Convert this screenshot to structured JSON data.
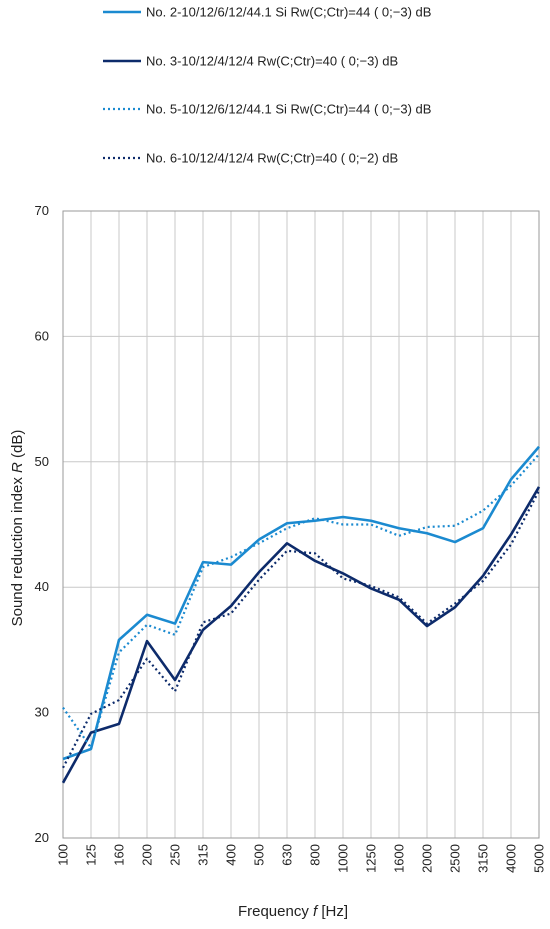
{
  "chart_data": {
    "type": "line",
    "xlabel": "Frequency f [Hz]",
    "xlabel_parts": {
      "before": "Frequency ",
      "italic": "f",
      "after": " [Hz]"
    },
    "ylabel": "Sound reduction index R (dB)",
    "ylabel_parts": {
      "before": "Sound reduction index  ",
      "italic": "R",
      "after": "  (dB)"
    },
    "ylim": [
      20,
      70
    ],
    "yticks": [
      "20",
      "30",
      "40",
      "50",
      "60",
      "70"
    ],
    "categories": [
      "100",
      "125",
      "160",
      "200",
      "250",
      "315",
      "400",
      "500",
      "630",
      "800",
      "1000",
      "1250",
      "1600",
      "2000",
      "2500",
      "3150",
      "4000",
      "5000"
    ],
    "grid": true,
    "legend_position": "top",
    "series": [
      {
        "name": "No. 2-10/12/6/12/44.1 Si Rw(C;Ctr)=44 ( 0;−3) dB",
        "color": "#1b8ad0",
        "style": "solid",
        "values": [
          26.3,
          27.1,
          35.8,
          37.8,
          37.1,
          42.0,
          41.8,
          43.8,
          45.1,
          45.3,
          45.6,
          45.3,
          44.7,
          44.3,
          43.6,
          44.7,
          48.6,
          51.2
        ]
      },
      {
        "name": "No. 3-10/12/4/12/4 Rw(C;Ctr)=40 ( 0;−3) dB",
        "color": "#0d2b6b",
        "style": "solid",
        "values": [
          24.4,
          28.4,
          29.1,
          35.7,
          32.6,
          36.6,
          38.5,
          41.2,
          43.5,
          42.1,
          41.1,
          39.9,
          39.0,
          36.9,
          38.4,
          40.9,
          44.2,
          48.0
        ]
      },
      {
        "name": "No. 5-10/12/6/12/44.1 Si Rw(C;Ctr)=44 ( 0;−3) dB",
        "color": "#1b8ad0",
        "style": "dotted",
        "values": [
          30.4,
          27.2,
          34.8,
          37.0,
          36.2,
          41.6,
          42.4,
          43.5,
          44.7,
          45.5,
          45.0,
          45.0,
          44.1,
          44.8,
          44.9,
          46.1,
          48.1,
          50.6
        ]
      },
      {
        "name": "No. 6-10/12/4/12/4 Rw(C;Ctr)=40 ( 0;−2) dB",
        "color": "#0d2b6b",
        "style": "dotted",
        "values": [
          25.6,
          29.9,
          31.0,
          34.3,
          31.7,
          37.2,
          37.9,
          40.6,
          42.9,
          42.7,
          40.7,
          40.1,
          39.2,
          37.1,
          38.7,
          40.5,
          43.4,
          47.7
        ]
      }
    ]
  }
}
